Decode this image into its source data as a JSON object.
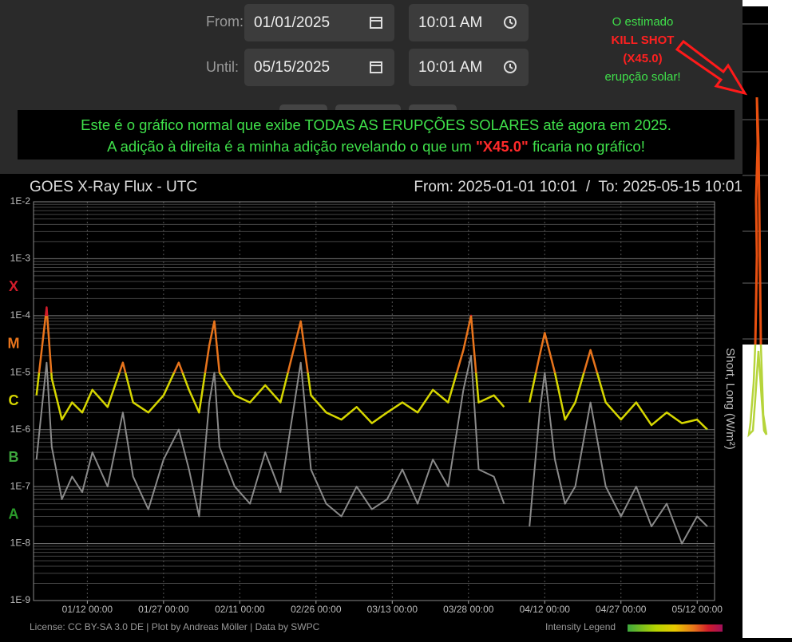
{
  "form": {
    "from": {
      "label": "From:",
      "date": "01/01/2025",
      "time": "10:01 AM"
    },
    "until": {
      "label": "Until:",
      "date": "05/15/2025",
      "time": "10:01 AM"
    }
  },
  "banner": {
    "line1": "Este é o gráfico normal que exibe TODAS AS ERUPÇÕES SOLARES até agora em 2025.",
    "line2_start": "A adição à direita é a minha adição revelando o que um",
    "line2_highlight": "\"X45.0\"",
    "line2_end": "ficaria no gráfico!"
  },
  "annotation": {
    "line1": "O estimado",
    "line2": "KILL SHOT",
    "line3": "(X45.0)",
    "line4": "erupção solar!"
  },
  "chart_data": {
    "type": "line",
    "title": "GOES X-Ray Flux - UTC",
    "subtitle": "From: 2025-01-01 10:01  /  To: 2025-05-15 10:01",
    "y_label": "Short, Long (W/m²)",
    "footer": "License: CC BY-SA 3.0 DE | Plot by Andreas Möller | Data by SWPC",
    "legend_label": "Intensity Legend",
    "log_y": true,
    "grid": true,
    "xlim": [
      "01/01 10:01",
      "05/15 10:01"
    ],
    "xticks": [
      "01/12 00:00",
      "01/27 00:00",
      "02/11 00:00",
      "02/26 00:00",
      "03/13 00:00",
      "03/28 00:00",
      "04/12 00:00",
      "04/27 00:00",
      "05/12 00:00"
    ],
    "ylim": [
      1e-09,
      0.01
    ],
    "yticks": [
      {
        "value": 1e-09,
        "label": "1E-9"
      },
      {
        "value": 1e-08,
        "label": "1E-8"
      },
      {
        "value": 1e-07,
        "label": "1E-7"
      },
      {
        "value": 1e-06,
        "label": "1E-6"
      },
      {
        "value": 1e-05,
        "label": "1E-5"
      },
      {
        "value": 0.0001,
        "label": "1E-4"
      },
      {
        "value": 0.001,
        "label": "1E-3"
      },
      {
        "value": 0.01,
        "label": "1E-2"
      }
    ],
    "classes": [
      {
        "label": "A",
        "value": 1e-08,
        "color": "#2a9a2a"
      },
      {
        "label": "B",
        "value": 1e-07,
        "color": "#3ea83e"
      },
      {
        "label": "C",
        "value": 1e-06,
        "color": "#d6d600"
      },
      {
        "label": "M",
        "value": 1e-05,
        "color": "#e8741c"
      },
      {
        "label": "X",
        "value": 0.0001,
        "color": "#d01c2a"
      }
    ],
    "x": [
      "01/02 00:00",
      "01/04 00:00",
      "01/05 00:00",
      "01/07 00:00",
      "01/09 00:00",
      "01/11 00:00",
      "01/13 00:00",
      "01/16 00:00",
      "01/19 00:00",
      "01/21 00:00",
      "01/24 00:00",
      "01/27 00:00",
      "01/30 00:00",
      "02/01 00:00",
      "02/03 00:00",
      "02/05 00:00",
      "02/06 00:00",
      "02/07 00:00",
      "02/10 00:00",
      "02/13 00:00",
      "02/16 00:00",
      "02/19 00:00",
      "02/23 00:00",
      "02/25 00:00",
      "02/28 00:00",
      "03/03 00:00",
      "03/06 00:00",
      "03/09 00:00",
      "03/12 00:00",
      "03/15 00:00",
      "03/18 00:00",
      "03/21 00:00",
      "03/24 00:00",
      "03/27 00:00",
      "03/28 12:00",
      "03/30 00:00",
      "04/02 00:00",
      "04/04 00:00",
      "04/06 00:00",
      "04/09 00:00",
      "04/11 00:00",
      "04/12 00:00",
      "04/14 00:00",
      "04/16 00:00",
      "04/18 00:00",
      "04/21 00:00",
      "04/24 00:00",
      "04/27 00:00",
      "04/30 00:00",
      "05/03 00:00",
      "05/06 00:00",
      "05/09 00:00",
      "05/12 00:00",
      "05/14 00:00"
    ],
    "series": [
      {
        "color": "#8a8a8a",
        "values": [
          3e-07,
          1.5e-05,
          5e-07,
          6e-08,
          1.5e-07,
          8e-08,
          4e-07,
          1e-07,
          2e-06,
          1.5e-07,
          4e-08,
          3e-07,
          1e-06,
          2e-07,
          3e-08,
          3e-06,
          1e-05,
          5e-07,
          1e-07,
          5e-08,
          4e-07,
          8e-08,
          1.5e-05,
          2e-07,
          5e-08,
          3e-08,
          1e-07,
          4e-08,
          6e-08,
          2e-07,
          5e-08,
          3e-07,
          1e-07,
          5e-06,
          2e-05,
          2e-07,
          1.5e-07,
          5e-08,
          null,
          2e-08,
          2e-06,
          1e-05,
          3e-07,
          5e-08,
          1e-07,
          3e-06,
          1e-07,
          3e-08,
          1e-07,
          2e-08,
          5e-08,
          1e-08,
          3e-08,
          2e-08
        ]
      },
      {
        "color": "#d6d600",
        "values": [
          4e-06,
          0.00014,
          8e-06,
          1.5e-06,
          3e-06,
          2e-06,
          5e-06,
          2.5e-06,
          1.5e-05,
          3e-06,
          2e-06,
          4e-06,
          1.5e-05,
          5e-06,
          2e-06,
          3e-05,
          8e-05,
          1e-05,
          4e-06,
          3e-06,
          6e-06,
          3e-06,
          8e-05,
          4e-06,
          2e-06,
          1.5e-06,
          2.5e-06,
          1.3e-06,
          2e-06,
          3e-06,
          2e-06,
          5e-06,
          3e-06,
          2.5e-05,
          0.0001,
          3e-06,
          4e-06,
          2.5e-06,
          null,
          3e-06,
          2e-05,
          5e-05,
          1e-05,
          1.5e-06,
          3e-06,
          2.5e-05,
          3e-06,
          1.5e-06,
          3e-06,
          1.2e-06,
          2e-06,
          1.3e-06,
          1.5e-06,
          1e-06
        ]
      }
    ]
  }
}
